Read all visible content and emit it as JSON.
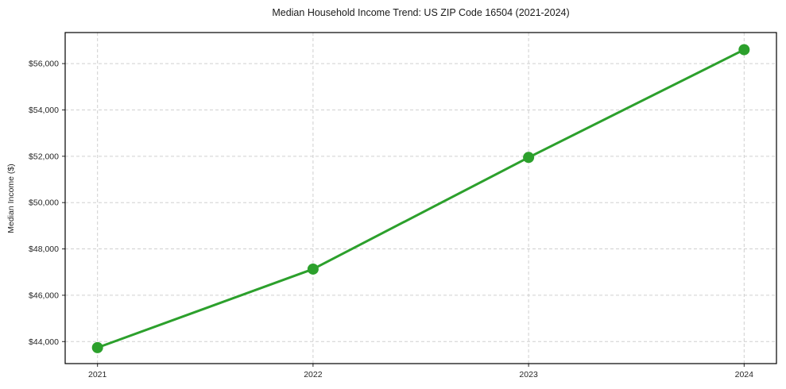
{
  "chart_data": {
    "type": "line",
    "title": "Median Household Income Trend: US ZIP Code 16504 (2021-2024)",
    "xlabel": "",
    "ylabel": "Median Income ($)",
    "x": [
      2021,
      2022,
      2023,
      2024
    ],
    "series": [
      {
        "name": "Median Household Income",
        "values": [
          43740,
          47130,
          51950,
          56600
        ]
      }
    ],
    "xtick_labels": [
      "2021",
      "2022",
      "2023",
      "2024"
    ],
    "yticks": [
      44000,
      46000,
      48000,
      50000,
      52000,
      54000,
      56000
    ],
    "ytick_labels": [
      "$44,000",
      "$46,000",
      "$48,000",
      "$50,000",
      "$52,000",
      "$54,000",
      "$56,000"
    ],
    "xlim": [
      2020.85,
      2024.15
    ],
    "ylim": [
      43050,
      57340
    ],
    "grid": true,
    "legend": "none",
    "marker_style": "circle",
    "line_width": 3,
    "marker_radius": 7,
    "colors": {
      "line": "#2ca02c",
      "marker": "#2ca02c",
      "grid": "#d0d0d0",
      "axis": "#000000",
      "text": "#262626",
      "background": "#ffffff"
    }
  }
}
